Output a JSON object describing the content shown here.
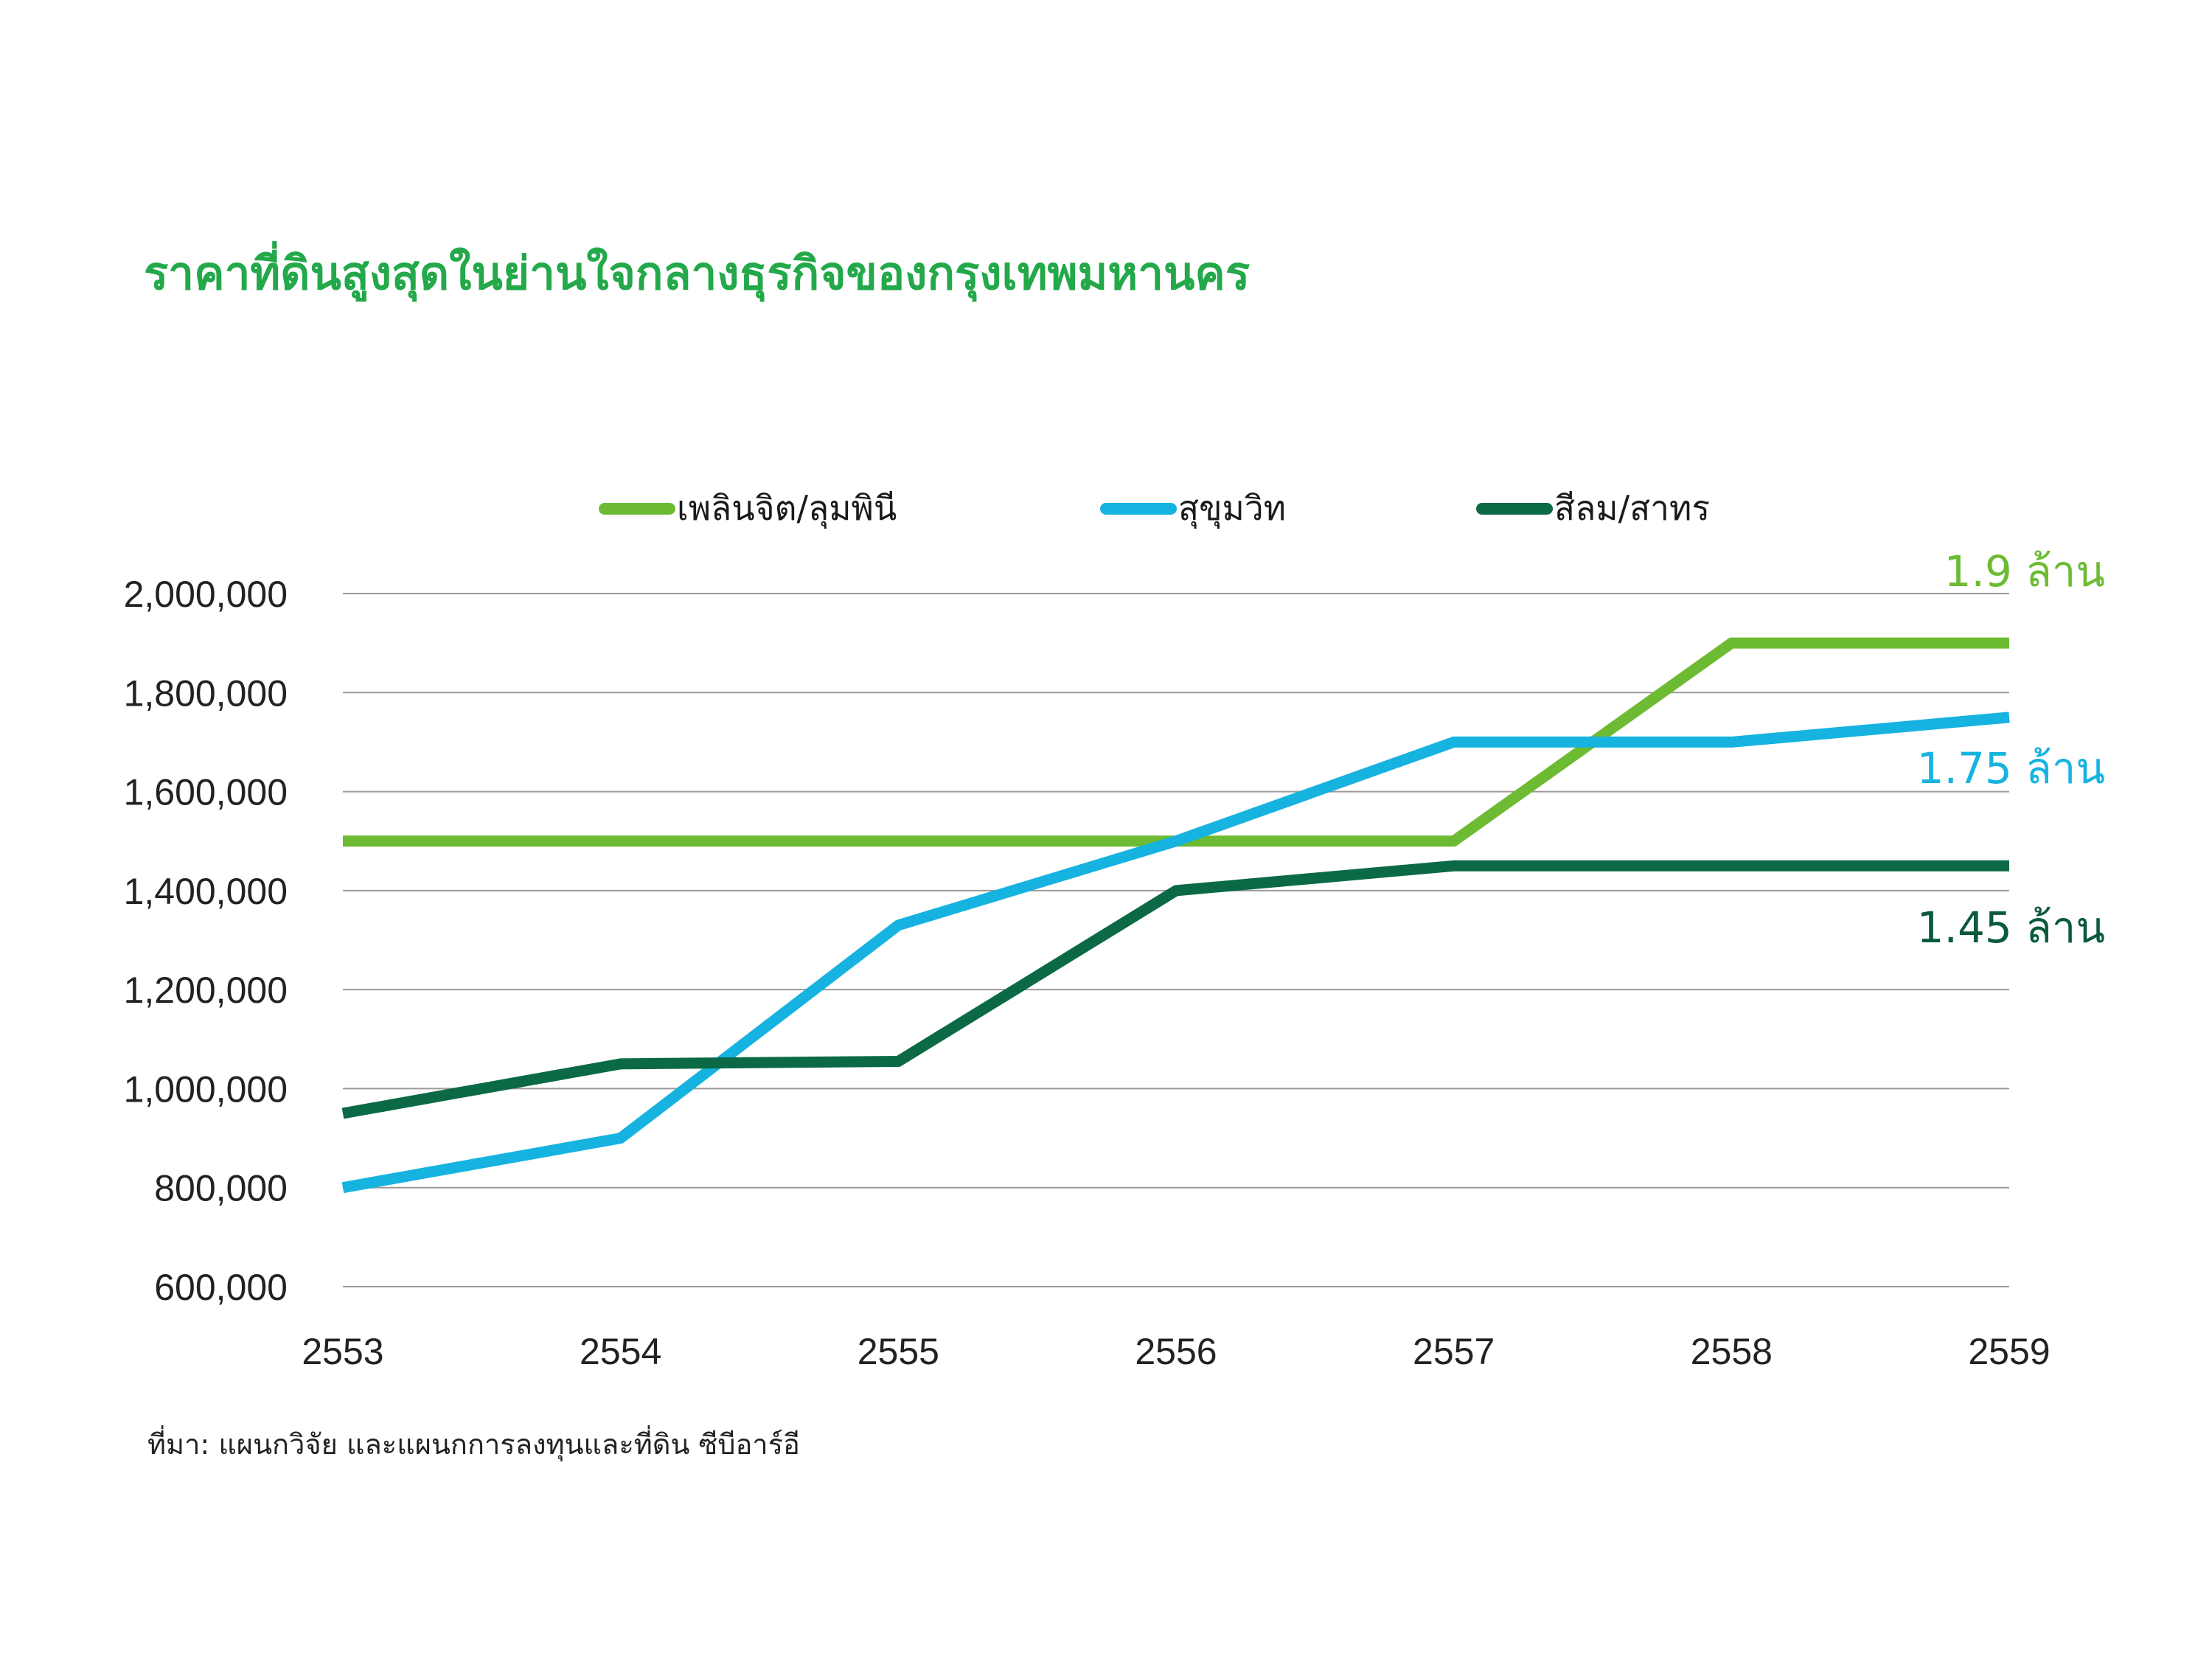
{
  "chart_data": {
    "type": "line",
    "title": "ราคาที่ดินสูงสุดในย่านใจกลางธุรกิจของกรุงเทพมหานคร",
    "x": [
      "2553",
      "2554",
      "2555",
      "2556",
      "2557",
      "2558",
      "2559"
    ],
    "ylim": [
      600000,
      2000000
    ],
    "yticks": [
      "600,000",
      "800,000",
      "1,000,000",
      "1,200,000",
      "1,400,000",
      "1,600,000",
      "1,800,000",
      "2,000,000"
    ],
    "ytick_values": [
      600000,
      800000,
      1000000,
      1200000,
      1400000,
      1600000,
      1800000,
      2000000
    ],
    "grid": true,
    "legend_position": "top",
    "series": [
      {
        "name": "เพลินจิต/ลุมพินี",
        "color": "#6cbb32",
        "values": [
          1500000,
          1500000,
          1500000,
          1500000,
          1500000,
          1900000,
          1900000
        ],
        "end_label": "1.9 ล้าน"
      },
      {
        "name": "สุขุมวิท",
        "color": "#16b3e0",
        "values": [
          800000,
          900000,
          1330000,
          1500000,
          1700000,
          1700000,
          1750000
        ],
        "end_label": "1.75 ล้าน"
      },
      {
        "name": "สีลม/สาทร",
        "color": "#0b6a45",
        "values": [
          950000,
          1050000,
          1055000,
          1400000,
          1450000,
          1450000,
          1450000
        ],
        "end_label": "1.45 ล้าน"
      }
    ],
    "source": "ที่มา:  แผนกวิจัย และแผนกการลงทุนและที่ดิน ซีบีอาร์อี",
    "title_color": "#23a84a"
  }
}
